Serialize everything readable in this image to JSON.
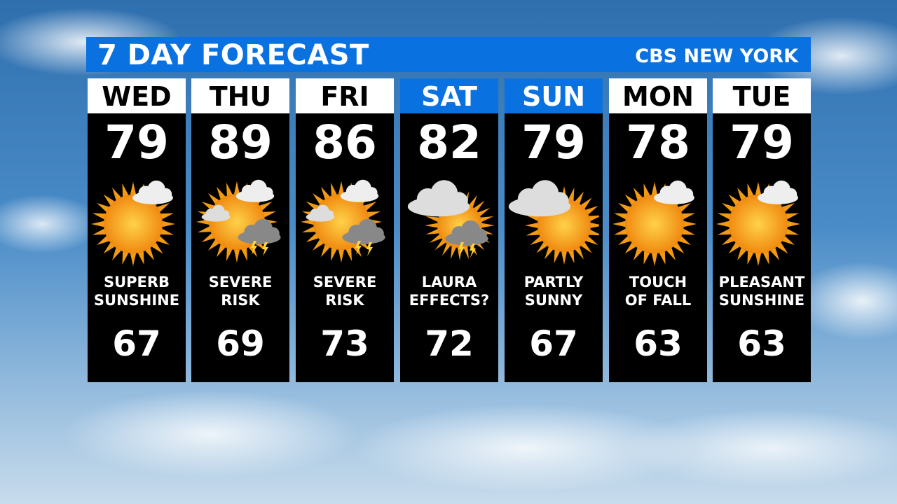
{
  "header": {
    "title": "7 DAY FORECAST",
    "brand": "CBS NEW YORK"
  },
  "colors": {
    "accent": "#0a72e0",
    "panel": "#000000"
  },
  "days": [
    {
      "day": "WED",
      "high": "79",
      "low": "67",
      "desc1": "SUPERB",
      "desc2": "SUNSHINE",
      "icon": "sun-few-clouds-icon",
      "weekend": false
    },
    {
      "day": "THU",
      "high": "89",
      "low": "69",
      "desc1": "SEVERE",
      "desc2": "RISK",
      "icon": "sun-thunderstorm-icon",
      "weekend": false
    },
    {
      "day": "FRI",
      "high": "86",
      "low": "73",
      "desc1": "SEVERE",
      "desc2": "RISK",
      "icon": "sun-thunderstorm-icon",
      "weekend": false
    },
    {
      "day": "SAT",
      "high": "82",
      "low": "72",
      "desc1": "LAURA",
      "desc2": "EFFECTS?",
      "icon": "cloudy-thunderstorm-icon",
      "weekend": true
    },
    {
      "day": "SUN",
      "high": "79",
      "low": "67",
      "desc1": "PARTLY",
      "desc2": "SUNNY",
      "icon": "partly-sunny-icon",
      "weekend": true
    },
    {
      "day": "MON",
      "high": "78",
      "low": "63",
      "desc1": "TOUCH",
      "desc2": "OF FALL",
      "icon": "sun-few-clouds-icon",
      "weekend": false
    },
    {
      "day": "TUE",
      "high": "79",
      "low": "63",
      "desc1": "PLEASANT",
      "desc2": "SUNSHINE",
      "icon": "sun-few-clouds-icon",
      "weekend": false
    }
  ]
}
